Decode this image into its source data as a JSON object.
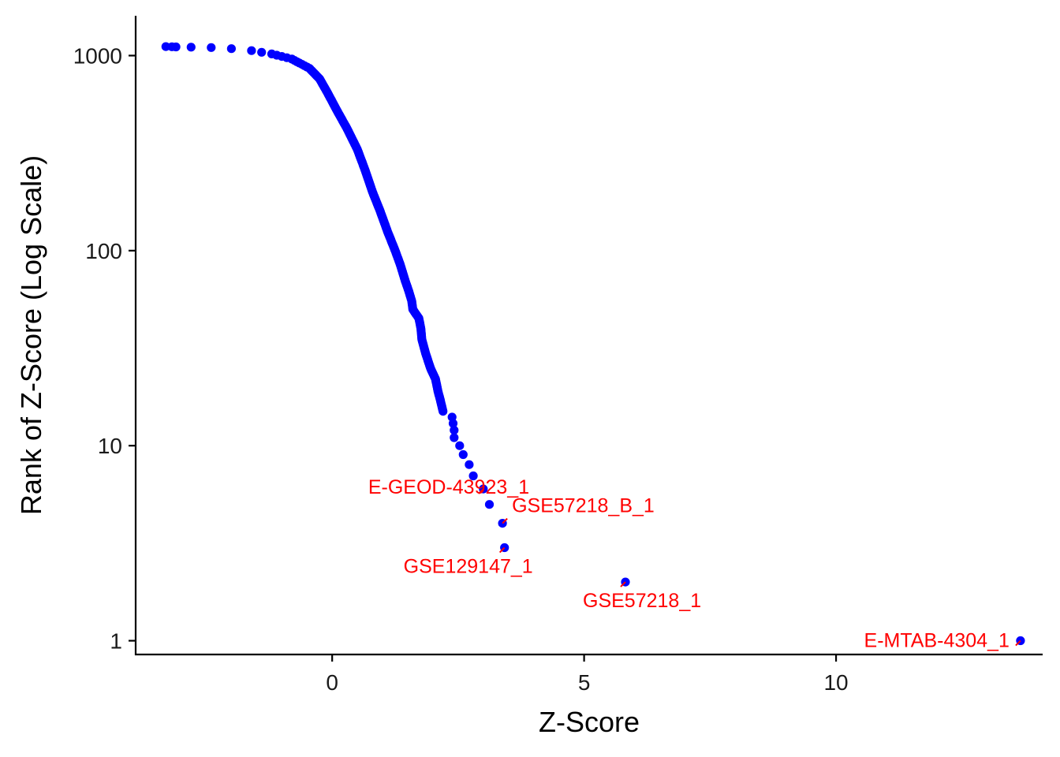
{
  "chart_data": {
    "type": "scatter",
    "title": "",
    "xlabel": "Z-Score",
    "ylabel": "Rank of Z-Score (Log Scale)",
    "y_scale": "log10",
    "xlim": [
      -3.9,
      14.1
    ],
    "ylim": [
      0.85,
      1600
    ],
    "x_ticks": [
      0,
      5,
      10
    ],
    "x_tick_labels": [
      "0",
      "5",
      "10"
    ],
    "y_ticks": [
      1,
      10,
      100,
      1000
    ],
    "y_tick_labels": [
      "1",
      "10",
      "100",
      "1000"
    ],
    "grid": false,
    "legend": "none",
    "point_color": "#0000ff",
    "label_color": "#ff0000",
    "points": [
      [
        13.66,
        1
      ],
      [
        5.82,
        2
      ],
      [
        3.42,
        3
      ],
      [
        3.38,
        4
      ],
      [
        3.12,
        5
      ],
      [
        3.0,
        6
      ],
      [
        2.8,
        7
      ],
      [
        2.72,
        8
      ],
      [
        2.6,
        9
      ],
      [
        2.53,
        10
      ],
      [
        2.42,
        11
      ],
      [
        2.42,
        12
      ],
      [
        2.4,
        13
      ],
      [
        2.38,
        14
      ],
      [
        2.2,
        15
      ],
      [
        2.15,
        17
      ],
      [
        2.1,
        19
      ],
      [
        2.05,
        22
      ],
      [
        1.95,
        25
      ],
      [
        1.85,
        30
      ],
      [
        1.78,
        35
      ],
      [
        1.76,
        40
      ],
      [
        1.72,
        45
      ],
      [
        1.6,
        50
      ],
      [
        1.58,
        55
      ],
      [
        1.52,
        62
      ],
      [
        1.45,
        70
      ],
      [
        1.35,
        85
      ],
      [
        1.25,
        100
      ],
      [
        1.1,
        125
      ],
      [
        0.95,
        160
      ],
      [
        0.8,
        200
      ],
      [
        0.65,
        260
      ],
      [
        0.5,
        330
      ],
      [
        0.3,
        420
      ],
      [
        0.1,
        520
      ],
      [
        -0.1,
        650
      ],
      [
        -0.25,
        760
      ],
      [
        -0.45,
        860
      ],
      [
        -0.8,
        960
      ],
      [
        -1.2,
        1020
      ],
      [
        -1.6,
        1060
      ],
      [
        -2.0,
        1085
      ],
      [
        -2.4,
        1100
      ],
      [
        -2.8,
        1105
      ],
      [
        -3.1,
        1108
      ],
      [
        -3.18,
        1110
      ],
      [
        -3.3,
        1112
      ]
    ],
    "labels": [
      {
        "text": "E-MTAB-4304_1",
        "x": 13.66,
        "y": 1
      },
      {
        "text": "GSE57218_1",
        "x": 5.82,
        "y": 2
      },
      {
        "text": "GSE129147_1",
        "x": 3.42,
        "y": 3
      },
      {
        "text": "GSE57218_B_1",
        "x": 3.38,
        "y": 4
      },
      {
        "text": "E-GEOD-43923_1",
        "x": 3.0,
        "y": 6
      }
    ]
  }
}
